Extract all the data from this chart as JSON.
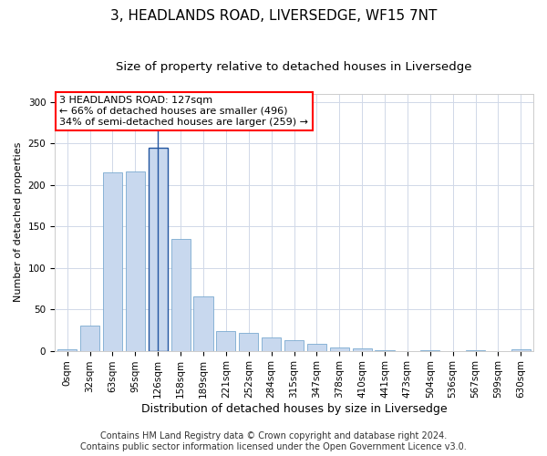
{
  "title": "3, HEADLANDS ROAD, LIVERSEDGE, WF15 7NT",
  "subtitle": "Size of property relative to detached houses in Liversedge",
  "xlabel": "Distribution of detached houses by size in Liversedge",
  "ylabel": "Number of detached properties",
  "footer_line1": "Contains HM Land Registry data © Crown copyright and database right 2024.",
  "footer_line2": "Contains public sector information licensed under the Open Government Licence v3.0.",
  "categories": [
    "0sqm",
    "32sqm",
    "63sqm",
    "95sqm",
    "126sqm",
    "158sqm",
    "189sqm",
    "221sqm",
    "252sqm",
    "284sqm",
    "315sqm",
    "347sqm",
    "378sqm",
    "410sqm",
    "441sqm",
    "473sqm",
    "504sqm",
    "536sqm",
    "567sqm",
    "599sqm",
    "630sqm"
  ],
  "bar_values": [
    2,
    30,
    215,
    216,
    245,
    135,
    65,
    24,
    22,
    16,
    13,
    8,
    4,
    3,
    1,
    0,
    1,
    0,
    1,
    0,
    2
  ],
  "bar_color": "#c8d8ee",
  "bar_edge_color": "#7aaad0",
  "highlight_bar_index": 4,
  "highlight_bar_edge_color": "#2255a0",
  "vline_x": 4,
  "vline_color": "#2255a0",
  "annotation_text_line1": "3 HEADLANDS ROAD: 127sqm",
  "annotation_text_line2": "← 66% of detached houses are smaller (496)",
  "annotation_text_line3": "34% of semi-detached houses are larger (259) →",
  "annotation_box_facecolor": "white",
  "annotation_box_edgecolor": "red",
  "ylim": [
    0,
    310
  ],
  "yticks": [
    0,
    50,
    100,
    150,
    200,
    250,
    300
  ],
  "grid_color": "#d0d8e8",
  "bg_color": "#ffffff",
  "plot_bg_color": "#ffffff",
  "title_fontsize": 11,
  "subtitle_fontsize": 9.5,
  "annotation_fontsize": 8,
  "ylabel_fontsize": 8,
  "xlabel_fontsize": 9,
  "tick_fontsize": 7.5,
  "footer_fontsize": 7
}
